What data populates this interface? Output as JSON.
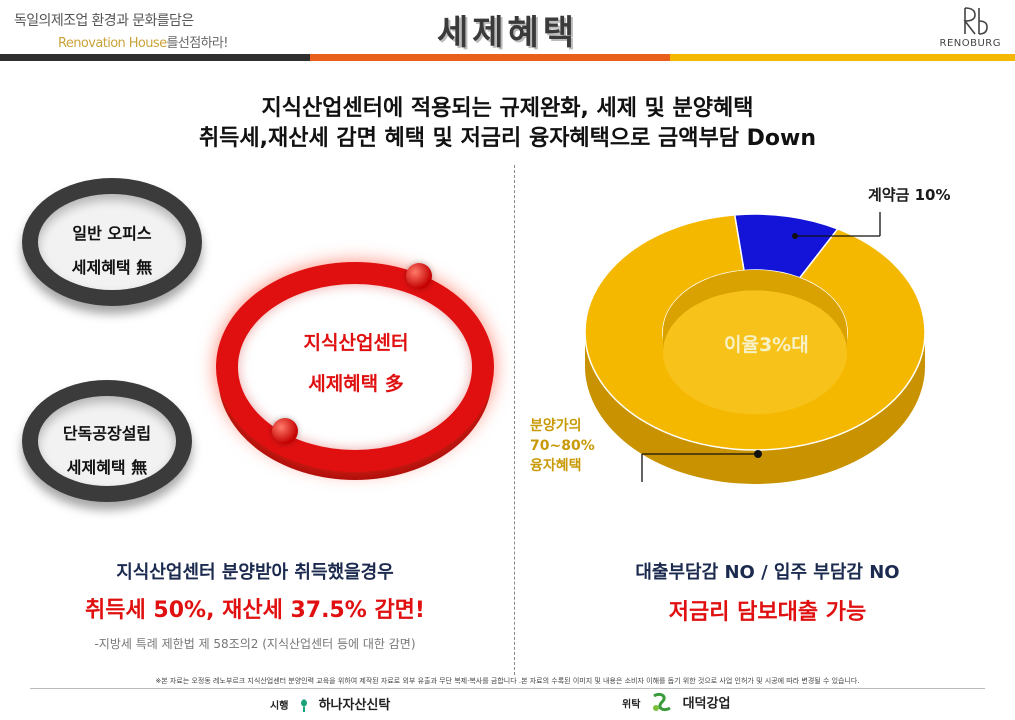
{
  "header": {
    "tagline_line1": "독일의제조업 환경과 문화를담은",
    "tagline_line2_accent": "Renovation House",
    "tagline_line2_rest": "를선점하라!",
    "title": "세제혜택",
    "logo_text": "RENOBURG",
    "colors": {
      "bar_dark": "#2f2f2f",
      "bar_orange": "#e8601c",
      "bar_yellow": "#f5b800"
    }
  },
  "headline": {
    "line1": "지식산업센터에 적용되는 규제완화, 세제 및 분양혜택",
    "line2": "취득세,재산세 감면 혜택 및 저금리 융자혜택으로 금액부담 Down"
  },
  "left": {
    "ring_office": {
      "line1": "일반 오피스",
      "line2": "세제혜택 無"
    },
    "ring_factory": {
      "line1": "단독공장설립",
      "line2": "세제혜택 無"
    },
    "center_ring": {
      "line1": "지식산업센터",
      "line2": "세제혜택 多"
    },
    "caption1": "지식산업센터 분양받아 취득했을경우",
    "caption2": "취득세 50%, 재산세 37.5% 감면!",
    "caption3": "-지방세 특례 제한법 제 58조의2 (지식산업센터 등에 대한 감면)"
  },
  "right": {
    "label_deposit": "계약금 10%",
    "label_rate": "이율3%대",
    "label_loan": [
      "분양가의",
      "70~80%",
      "융자혜택"
    ],
    "caption1": "대출부담감 NO / 입주 부담감 NO",
    "caption2": "저금리 담보대출 가능"
  },
  "chart_data": {
    "type": "pie",
    "categories": [
      "계약금 10%",
      "분양가의 70~80% 융자혜택"
    ],
    "values": [
      10,
      90
    ],
    "colors": [
      "#1414d8",
      "#f5b800"
    ],
    "donut": true
  },
  "footer": {
    "note": "※본 자료는 오정동 레노부르크 지식산업센터 분양인력 교육을 위하여 제작된 자료로 외부 유출과 무단 복제·복사를 금합니다 .본 자료의 수록된 이미지 및 내용은 소비자 이해를 돕기 위한 것으로 사업 인허가 및 시공에 따라 변경될 수 있습니다.",
    "trust_label": "시행",
    "trust_name": "하나자산신탁",
    "delegate_label": "위탁",
    "delegate_name": "대덕강업"
  }
}
